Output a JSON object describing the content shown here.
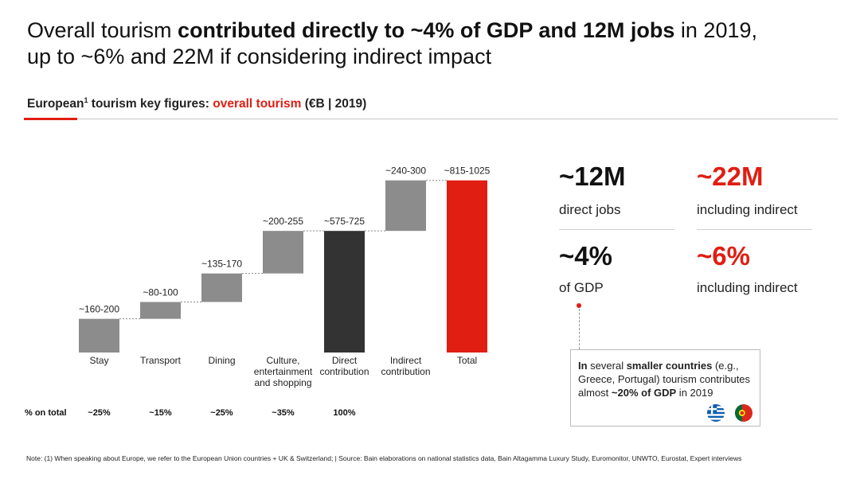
{
  "header": {
    "title_part1": "Overall tourism ",
    "title_bold": "contributed directly to ~4% of GDP and 12M jobs",
    "title_part2": " in 2019,",
    "title_line2": "up to ~6% and 22M if considering indirect impact"
  },
  "subtitle": {
    "lead": "European",
    "sup": "1",
    "mid": " tourism key figures: ",
    "highlight": "overall tourism",
    "tail": " (€B | 2019)"
  },
  "chart_data": {
    "type": "bar",
    "subtype": "waterfall",
    "categories": [
      "Stay",
      "Transport",
      "Dining",
      "Culture, entertainment and shopping",
      "Direct contribution",
      "Indirect contribution",
      "Total"
    ],
    "category_lines": [
      [
        "Stay"
      ],
      [
        "Transport"
      ],
      [
        "Dining"
      ],
      [
        "Culture,",
        "entertainment",
        "and shopping"
      ],
      [
        "Direct",
        "contribution"
      ],
      [
        "Indirect",
        "contribution"
      ],
      [
        "Total"
      ]
    ],
    "value_labels": [
      "~160-200",
      "~80-100",
      "~135-170",
      "~200-255",
      "~575-725",
      "~240-300",
      "~815-1025"
    ],
    "ranges": [
      [
        160,
        200
      ],
      [
        80,
        100
      ],
      [
        135,
        170
      ],
      [
        200,
        255
      ],
      [
        575,
        725
      ],
      [
        240,
        300
      ],
      [
        815,
        1025
      ]
    ],
    "kinds": [
      "step",
      "step",
      "step",
      "step",
      "subtotal",
      "step",
      "total"
    ],
    "share_row_label": "% on total",
    "share_values": [
      "~25%",
      "~15%",
      "~25%",
      "~35%",
      "100%",
      "",
      ""
    ],
    "colors": {
      "step": "#8c8c8c",
      "subtotal": "#333333",
      "total": "#e01e12",
      "connector": "#888888"
    },
    "ylim": [
      0,
      1025
    ],
    "xlabel": "",
    "ylabel": ""
  },
  "kpis": [
    {
      "value": "~12M",
      "label": "direct jobs",
      "accent": false
    },
    {
      "value": "~22M",
      "label": "including indirect",
      "accent": true
    },
    {
      "value": "~4%",
      "label": "of GDP",
      "accent": false
    },
    {
      "value": "~6%",
      "label": "including indirect",
      "accent": true
    }
  ],
  "callout": {
    "p1": "In",
    "p2": " several ",
    "p3": "smaller countries",
    "p4": " (e.g., Greece, Portugal) tourism contributes almost ",
    "p5": "~20% of GDP",
    "p6": " in 2019"
  },
  "flags": [
    {
      "icon": "greece-flag-icon",
      "colors": [
        "#0d5eaf",
        "#ffffff"
      ]
    },
    {
      "icon": "portugal-flag-icon",
      "colors": [
        "#046a38",
        "#da291c",
        "#ffe900"
      ]
    }
  ],
  "footnote": "Note: (1) When speaking about Europe, we refer to the European Union countries + UK & Switzerland; | Source: Bain elaborations on national statistics data, Bain Altagamma Luxury Study, Euromonitor, UNWTO, Eurostat, Expert interviews"
}
